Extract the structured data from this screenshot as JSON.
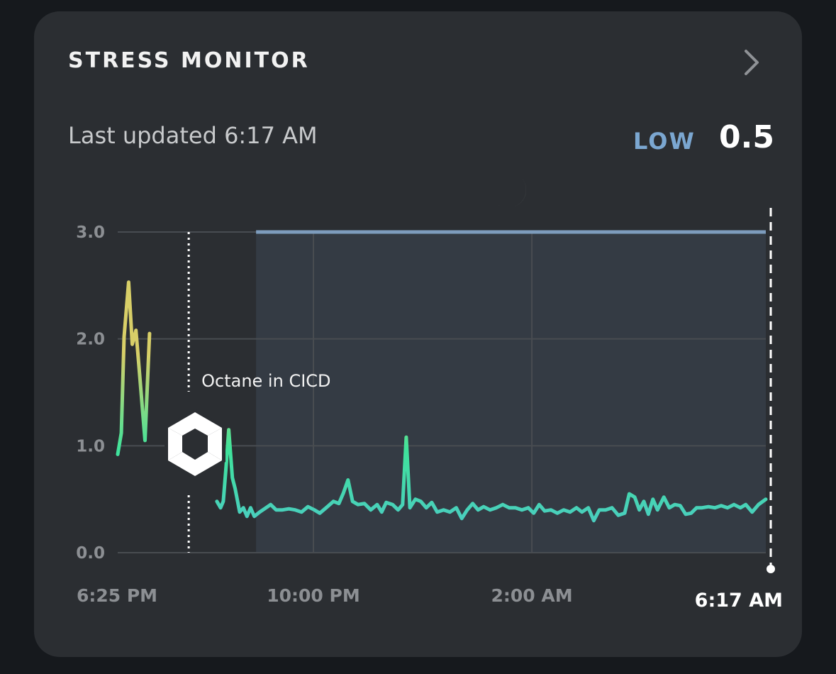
{
  "header": {
    "title": "STRESS MONITOR"
  },
  "status": {
    "updated": "Last updated 6:17 AM",
    "level": "LOW",
    "score": "0.5"
  },
  "icons": {
    "nav": "chevron-right-icon",
    "sleep": "moon-icon",
    "activity": "hexagon-logo-icon"
  },
  "colors": {
    "card": "#2b2e32",
    "level_low": "#7ba7d1",
    "sleep_band": "#343b44",
    "sleep_line": "#7d9cbd",
    "line_low": "#4fc4cf",
    "line_mid": "#3fe39b",
    "line_high": "#d8cf68"
  },
  "chart_data": {
    "type": "line",
    "title": "",
    "xlabel": "",
    "ylabel": "",
    "ylim": [
      0,
      3
    ],
    "yticks": [
      "0.0",
      "1.0",
      "2.0",
      "3.0"
    ],
    "xticks": [
      "6:25 PM",
      "10:00 PM",
      "2:00 AM",
      "6:17 AM"
    ],
    "xlim": [
      "6:25 PM",
      "6:17 AM"
    ],
    "grid": true,
    "annotation": {
      "label": "Octane in CICD",
      "time": "7:43 PM"
    },
    "sleep_period": {
      "start": "8:57 PM",
      "end": "6:17 AM",
      "level": 3.0
    },
    "current": {
      "time": "6:17 AM",
      "value": 0.5
    },
    "series": [
      {
        "segments": [
          [
            [
              "6:25 PM",
              0.92
            ],
            [
              "6:29 PM",
              1.12
            ],
            [
              "6:32 PM",
              2.02
            ],
            [
              "6:37 PM",
              2.53
            ],
            [
              "6:41 PM",
              1.95
            ],
            [
              "6:45 PM",
              2.08
            ],
            [
              "6:48 PM",
              1.78
            ],
            [
              "6:55 PM",
              1.05
            ],
            [
              "7:00 PM",
              2.05
            ]
          ],
          [
            [
              "8:14 PM",
              0.48
            ],
            [
              "8:18 PM",
              0.42
            ],
            [
              "8:21 PM",
              0.48
            ],
            [
              "8:24 PM",
              0.8
            ],
            [
              "8:27 PM",
              1.15
            ],
            [
              "8:31 PM",
              0.7
            ],
            [
              "8:34 PM",
              0.6
            ],
            [
              "8:39 PM",
              0.38
            ],
            [
              "8:43 PM",
              0.42
            ],
            [
              "8:47 PM",
              0.34
            ],
            [
              "8:51 PM",
              0.42
            ],
            [
              "8:55 PM",
              0.34
            ],
            [
              "9:01 PM",
              0.38
            ],
            [
              "9:08 PM",
              0.42
            ],
            [
              "9:13 PM",
              0.45
            ],
            [
              "9:19 PM",
              0.4
            ],
            [
              "9:26 PM",
              0.4
            ],
            [
              "9:33 PM",
              0.41
            ],
            [
              "9:40 PM",
              0.4
            ],
            [
              "9:47 PM",
              0.38
            ],
            [
              "9:54 PM",
              0.43
            ],
            [
              "10:01 PM",
              0.4
            ],
            [
              "10:07 PM",
              0.37
            ],
            [
              "10:14 PM",
              0.42
            ],
            [
              "10:22 PM",
              0.48
            ],
            [
              "10:28 PM",
              0.46
            ],
            [
              "10:33 PM",
              0.56
            ],
            [
              "10:38 PM",
              0.68
            ],
            [
              "10:43 PM",
              0.48
            ],
            [
              "10:49 PM",
              0.45
            ],
            [
              "10:56 PM",
              0.46
            ],
            [
              "11:03 PM",
              0.4
            ],
            [
              "11:10 PM",
              0.45
            ],
            [
              "11:15 PM",
              0.38
            ],
            [
              "11:20 PM",
              0.47
            ],
            [
              "11:27 PM",
              0.45
            ],
            [
              "11:33 PM",
              0.4
            ],
            [
              "11:38 PM",
              0.45
            ],
            [
              "11:42 PM",
              1.08
            ],
            [
              "11:46 PM",
              0.42
            ],
            [
              "11:52 PM",
              0.5
            ],
            [
              "11:58 PM",
              0.48
            ],
            [
              "12:04 AM",
              0.42
            ],
            [
              "12:10 AM",
              0.47
            ],
            [
              "12:16 AM",
              0.38
            ],
            [
              "12:23 AM",
              0.4
            ],
            [
              "12:30 AM",
              0.38
            ],
            [
              "12:37 AM",
              0.42
            ],
            [
              "12:43 AM",
              0.32
            ],
            [
              "12:49 AM",
              0.4
            ],
            [
              "12:55 AM",
              0.46
            ],
            [
              "1:01 AM",
              0.4
            ],
            [
              "1:07 AM",
              0.43
            ],
            [
              "1:14 AM",
              0.4
            ],
            [
              "1:21 AM",
              0.42
            ],
            [
              "1:28 AM",
              0.45
            ],
            [
              "1:35 AM",
              0.42
            ],
            [
              "1:42 AM",
              0.42
            ],
            [
              "1:49 AM",
              0.4
            ],
            [
              "1:56 AM",
              0.42
            ],
            [
              "2:02 AM",
              0.37
            ],
            [
              "2:08 AM",
              0.45
            ],
            [
              "2:14 AM",
              0.39
            ],
            [
              "2:21 AM",
              0.4
            ],
            [
              "2:28 AM",
              0.37
            ],
            [
              "2:35 AM",
              0.4
            ],
            [
              "2:42 AM",
              0.38
            ],
            [
              "2:49 AM",
              0.42
            ],
            [
              "2:55 AM",
              0.38
            ],
            [
              "3:02 AM",
              0.42
            ],
            [
              "3:08 AM",
              0.3
            ],
            [
              "3:14 AM",
              0.4
            ],
            [
              "3:21 AM",
              0.4
            ],
            [
              "3:28 AM",
              0.42
            ],
            [
              "3:35 AM",
              0.35
            ],
            [
              "3:42 AM",
              0.37
            ],
            [
              "3:47 AM",
              0.55
            ],
            [
              "3:53 AM",
              0.52
            ],
            [
              "3:58 AM",
              0.4
            ],
            [
              "4:03 AM",
              0.48
            ],
            [
              "4:08 AM",
              0.36
            ],
            [
              "4:13 AM",
              0.5
            ],
            [
              "4:18 AM",
              0.4
            ],
            [
              "4:25 AM",
              0.52
            ],
            [
              "4:31 AM",
              0.42
            ],
            [
              "4:37 AM",
              0.45
            ],
            [
              "4:43 AM",
              0.44
            ],
            [
              "4:49 AM",
              0.36
            ],
            [
              "4:55 AM",
              0.37
            ],
            [
              "5:01 AM",
              0.42
            ],
            [
              "5:07 AM",
              0.42
            ],
            [
              "5:14 AM",
              0.43
            ],
            [
              "5:21 AM",
              0.42
            ],
            [
              "5:28 AM",
              0.44
            ],
            [
              "5:35 AM",
              0.42
            ],
            [
              "5:42 AM",
              0.45
            ],
            [
              "5:49 AM",
              0.42
            ],
            [
              "5:55 AM",
              0.45
            ],
            [
              "6:02 AM",
              0.38
            ],
            [
              "6:09 AM",
              0.45
            ],
            [
              "6:17 AM",
              0.5
            ]
          ]
        ]
      }
    ]
  }
}
